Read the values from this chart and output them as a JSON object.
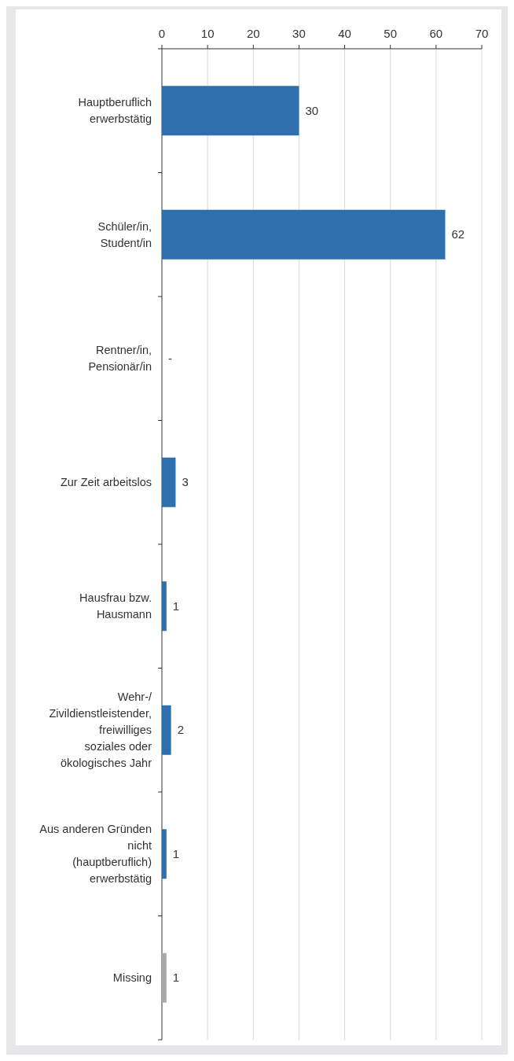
{
  "chart_data": {
    "type": "bar",
    "orientation": "horizontal",
    "categories": [
      "Hauptberuflich erwerbstätig",
      "Schüler/in, Student/in",
      "Rentner/in, Pensionär/in",
      "Zur Zeit arbeitslos",
      "Hausfrau bzw. Hausmann",
      "Wehr-/ Zivildienstleistender, freiwilliges soziales oder ökologisches Jahr",
      "Aus anderen Gründen nicht (hauptberuflich) erwerbstätig",
      "Missing"
    ],
    "values": [
      30,
      62,
      null,
      3,
      1,
      2,
      1,
      1
    ],
    "value_labels": [
      "30",
      "62",
      "-",
      "3",
      "1",
      "2",
      "1",
      "1"
    ],
    "colors": [
      "#2e6fad",
      "#2e6fad",
      null,
      "#2e6fad",
      "#2e6fad",
      "#2e6fad",
      "#2e6fad",
      "#a7a9ac"
    ],
    "xlim": [
      0,
      70
    ],
    "xticks": [
      0,
      10,
      20,
      30,
      40,
      50,
      60,
      70
    ],
    "grid": "x"
  }
}
